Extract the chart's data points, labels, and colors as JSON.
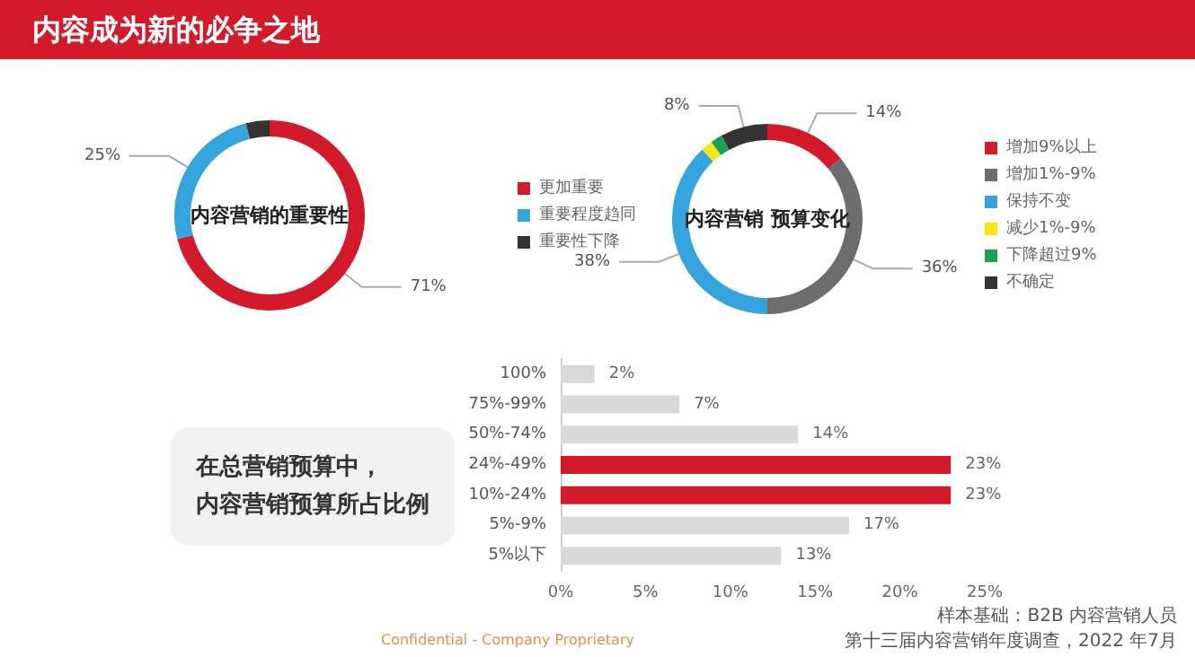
{
  "chart_data": [
    {
      "type": "other",
      "title": "内容成为新的必争之地",
      "annotations": [
        "样本基础：B2B 内容营销人员",
        "第十三届内容营销年度调查，2022 年7月",
        "Confidential - Company Proprietary"
      ]
    },
    {
      "type": "donut",
      "title": "内容营销的重要性",
      "categories": [
        "更加重要",
        "重要程度趋同",
        "重要性下降"
      ],
      "values": [
        71,
        25,
        4
      ],
      "colors": [
        "#d21a2a",
        "#35a4dc",
        "#333333"
      ],
      "value_labels": [
        "71%",
        "25%",
        null
      ],
      "legend": "right"
    },
    {
      "type": "donut",
      "title": "内容营销 预算变化",
      "categories": [
        "增加9%以上",
        "增加1%-9%",
        "保持不变",
        "减少1%-9%",
        "下降超过9%",
        "不确定"
      ],
      "values": [
        14,
        36,
        38,
        2,
        2,
        8
      ],
      "colors": [
        "#d21a2a",
        "#6d6d6d",
        "#35a4dc",
        "#f5e614",
        "#1e9e5a",
        "#333333"
      ],
      "value_labels": [
        "14%",
        "36%",
        "38%",
        null,
        null,
        "8%"
      ],
      "legend": "right"
    },
    {
      "type": "bar",
      "orientation": "horizontal",
      "title": "在总营销预算中，内容营销预算所占比例",
      "categories": [
        "100%",
        "75%-99%",
        "50%-74%",
        "24%-49%",
        "10%-24%",
        "5%-9%",
        "5%以下"
      ],
      "values": [
        2,
        7,
        14,
        23,
        23,
        17,
        13
      ],
      "colors": [
        "#d9d9d9",
        "#d9d9d9",
        "#d9d9d9",
        "#d21a2a",
        "#d21a2a",
        "#d9d9d9",
        "#d9d9d9"
      ],
      "value_labels": [
        "2%",
        "7%",
        "14%",
        "23%",
        "23%",
        "17%",
        "13%"
      ],
      "xlim": [
        0,
        25
      ],
      "xticks": [
        {
          "value": 0,
          "label": "0%"
        },
        {
          "value": 5,
          "label": "5%"
        },
        {
          "value": 10,
          "label": "10%"
        },
        {
          "value": 15,
          "label": "15%"
        },
        {
          "value": 20,
          "label": "20%"
        },
        {
          "value": 25,
          "label": "25%"
        }
      ],
      "grid": false
    }
  ]
}
